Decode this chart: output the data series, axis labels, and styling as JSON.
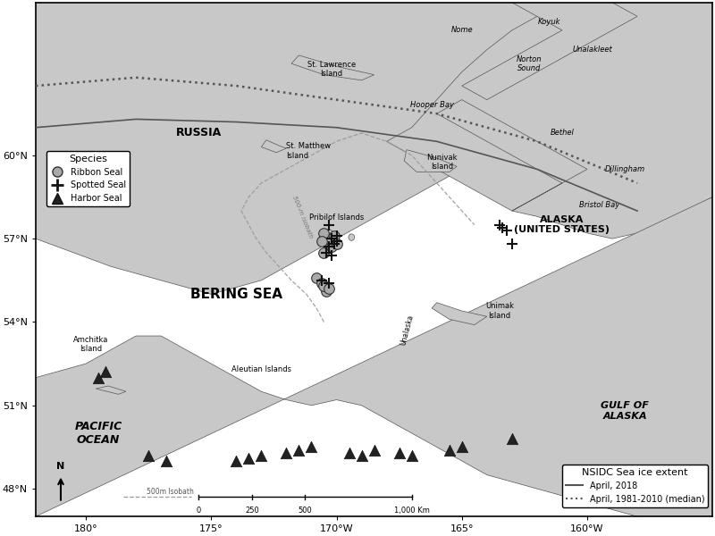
{
  "xlim": [
    -182,
    -155
  ],
  "ylim": [
    47.0,
    65.5
  ],
  "land_color": "#c8c8c8",
  "water_color": "#ffffff",
  "border_color": "#555555",
  "ribbon_seals": [
    [
      -170.5,
      56.5
    ],
    [
      -170.2,
      56.7
    ],
    [
      -170.0,
      56.8
    ],
    [
      -170.3,
      57.0
    ],
    [
      -170.5,
      57.2
    ],
    [
      -170.1,
      57.1
    ],
    [
      -170.6,
      56.9
    ],
    [
      -170.8,
      55.6
    ],
    [
      -170.6,
      55.4
    ],
    [
      -170.4,
      55.1
    ],
    [
      -170.5,
      55.3
    ],
    [
      -170.3,
      55.2
    ]
  ],
  "spotted_seals": [
    [
      -170.3,
      57.5
    ],
    [
      -170.2,
      57.0
    ],
    [
      -170.0,
      56.9
    ],
    [
      -170.1,
      56.8
    ],
    [
      -170.3,
      56.7
    ],
    [
      -170.4,
      56.5
    ],
    [
      -170.2,
      56.4
    ],
    [
      -170.0,
      57.1
    ],
    [
      -170.6,
      55.5
    ],
    [
      -170.3,
      55.4
    ],
    [
      -163.5,
      57.5
    ],
    [
      -163.2,
      57.3
    ],
    [
      -163.4,
      57.4
    ],
    [
      -163.0,
      56.8
    ]
  ],
  "harbor_seals": [
    [
      -179.5,
      52.0
    ],
    [
      -179.2,
      52.2
    ],
    [
      -177.5,
      49.2
    ],
    [
      -176.8,
      49.0
    ],
    [
      -174.0,
      49.0
    ],
    [
      -173.5,
      49.1
    ],
    [
      -173.0,
      49.2
    ],
    [
      -172.0,
      49.3
    ],
    [
      -171.5,
      49.4
    ],
    [
      -171.0,
      49.5
    ],
    [
      -169.5,
      49.3
    ],
    [
      -169.0,
      49.2
    ],
    [
      -168.5,
      49.4
    ],
    [
      -167.5,
      49.3
    ],
    [
      -167.0,
      49.2
    ],
    [
      -165.5,
      49.4
    ],
    [
      -165.0,
      49.5
    ],
    [
      -163.0,
      49.8
    ]
  ],
  "xticks": [
    -180,
    -175,
    -170,
    -165,
    -160
  ],
  "xticklabels": [
    "180°",
    "175°",
    "170°W",
    "165°",
    "160°W"
  ],
  "yticks": [
    48,
    51,
    54,
    57,
    60
  ],
  "yticklabels": [
    "48°N",
    "51°N",
    "54°N",
    "57°N",
    "60°N"
  ]
}
